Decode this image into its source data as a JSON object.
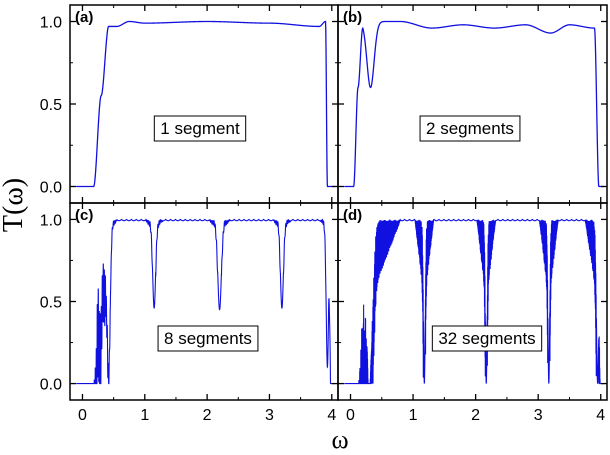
{
  "ylabel": "T(ω)",
  "xlabel": "ω",
  "xlim": [
    -0.2,
    4.1
  ],
  "ylim": [
    -0.1,
    1.1
  ],
  "x_ticks": [
    "0",
    "1",
    "2",
    "3",
    "4"
  ],
  "y_ticks": [
    "0.0",
    "0.5",
    "1.0"
  ],
  "line_color": "#1010e0",
  "chart_data": [
    {
      "type": "line",
      "panel": "(a)",
      "annotation": "1 segment",
      "grid": false,
      "band_edges": [
        0.18,
        3.93
      ],
      "ripple": [
        [
          0.18,
          0.0
        ],
        [
          0.3,
          0.55
        ],
        [
          0.42,
          0.97
        ],
        [
          0.55,
          0.97
        ],
        [
          0.75,
          1.0
        ],
        [
          1.0,
          0.99
        ],
        [
          2.0,
          1.0
        ],
        [
          3.0,
          0.99
        ],
        [
          3.8,
          0.97
        ],
        [
          3.9,
          1.0
        ],
        [
          3.93,
          0.0
        ]
      ],
      "dips": []
    },
    {
      "type": "line",
      "panel": "(b)",
      "annotation": "2 segments",
      "grid": false,
      "band_edges": [
        0.05,
        3.97
      ],
      "ripple": [
        [
          0.05,
          0.0
        ],
        [
          0.12,
          0.6
        ],
        [
          0.2,
          1.0
        ],
        [
          0.5,
          1.0
        ],
        [
          0.8,
          1.0
        ],
        [
          1.3,
          0.96
        ],
        [
          1.8,
          0.98
        ],
        [
          2.3,
          0.96
        ],
        [
          2.8,
          0.98
        ],
        [
          3.2,
          0.93
        ],
        [
          3.5,
          0.98
        ],
        [
          3.9,
          0.96
        ],
        [
          3.97,
          0.0
        ]
      ],
      "dips": [
        {
          "center": 0.32,
          "min": 0.6,
          "width": 0.12
        }
      ]
    },
    {
      "type": "line",
      "panel": "(c)",
      "annotation": "8 segments",
      "grid": false,
      "band_edges": [
        0.18,
        3.98
      ],
      "ripple": [
        [
          0.18,
          0.0
        ],
        [
          0.5,
          1.0
        ],
        [
          3.98,
          1.0
        ]
      ],
      "dips": [
        {
          "center": 0.25,
          "min": 0.6,
          "width": 0.03
        },
        {
          "center": 0.33,
          "min": 0.75,
          "width": 0.03
        },
        {
          "center": 0.42,
          "min": 0.1,
          "width": 0.05
        },
        {
          "center": 1.15,
          "min": 0.46,
          "width": 0.05
        },
        {
          "center": 2.2,
          "min": 0.45,
          "width": 0.06
        },
        {
          "center": 3.2,
          "min": 0.46,
          "width": 0.05
        },
        {
          "center": 3.93,
          "min": 0.1,
          "width": 0.04
        }
      ]
    },
    {
      "type": "line",
      "panel": "(d)",
      "annotation": "32 segments",
      "grid": false,
      "band_edges": [
        0.12,
        3.99
      ],
      "ripple": [
        [
          0.12,
          0.0
        ],
        [
          0.45,
          1.0
        ],
        [
          3.99,
          1.0
        ]
      ],
      "dips": [
        {
          "center": 0.3,
          "min": 0.0,
          "width": 0.1
        },
        {
          "center": 1.18,
          "min": 0.0,
          "width": 0.03
        },
        {
          "center": 2.17,
          "min": 0.0,
          "width": 0.03
        },
        {
          "center": 3.17,
          "min": 0.0,
          "width": 0.03
        },
        {
          "center": 3.95,
          "min": 0.0,
          "width": 0.04
        }
      ]
    }
  ]
}
